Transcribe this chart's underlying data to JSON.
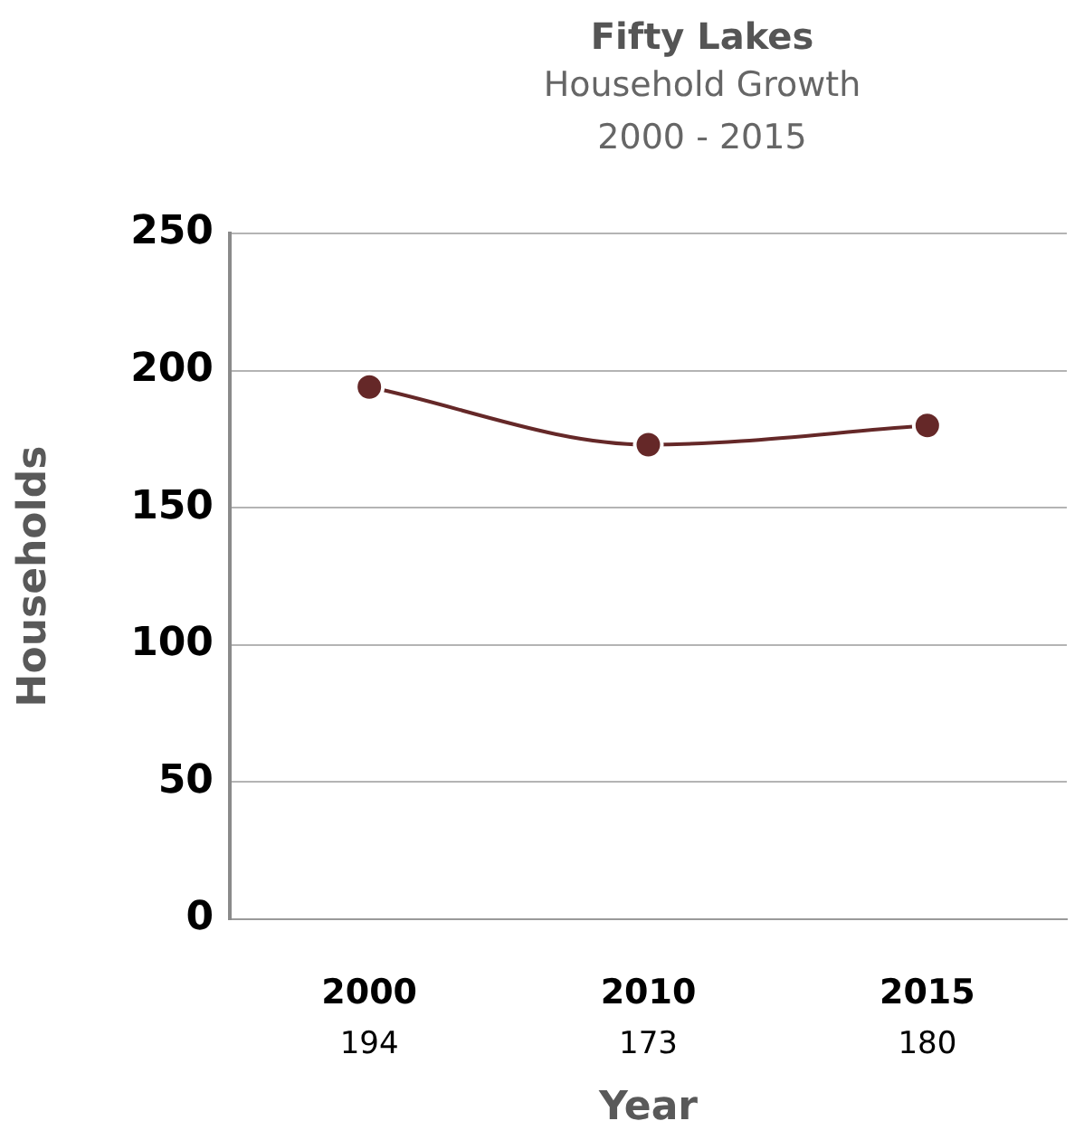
{
  "chart_data": {
    "type": "line",
    "title": "Fifty Lakes",
    "subtitle": "Household Growth\n2000 - 2015",
    "xlabel": "Year",
    "ylabel": "Households",
    "categories": [
      "2000",
      "2010",
      "2015"
    ],
    "series": [
      {
        "color": "#652828",
        "values": [
          194,
          173,
          180
        ]
      }
    ],
    "ylim": [
      0,
      250
    ],
    "yticks": [
      0,
      50,
      100,
      150,
      200,
      250
    ],
    "grid": "y",
    "marker": "circle",
    "data_labels": true
  }
}
